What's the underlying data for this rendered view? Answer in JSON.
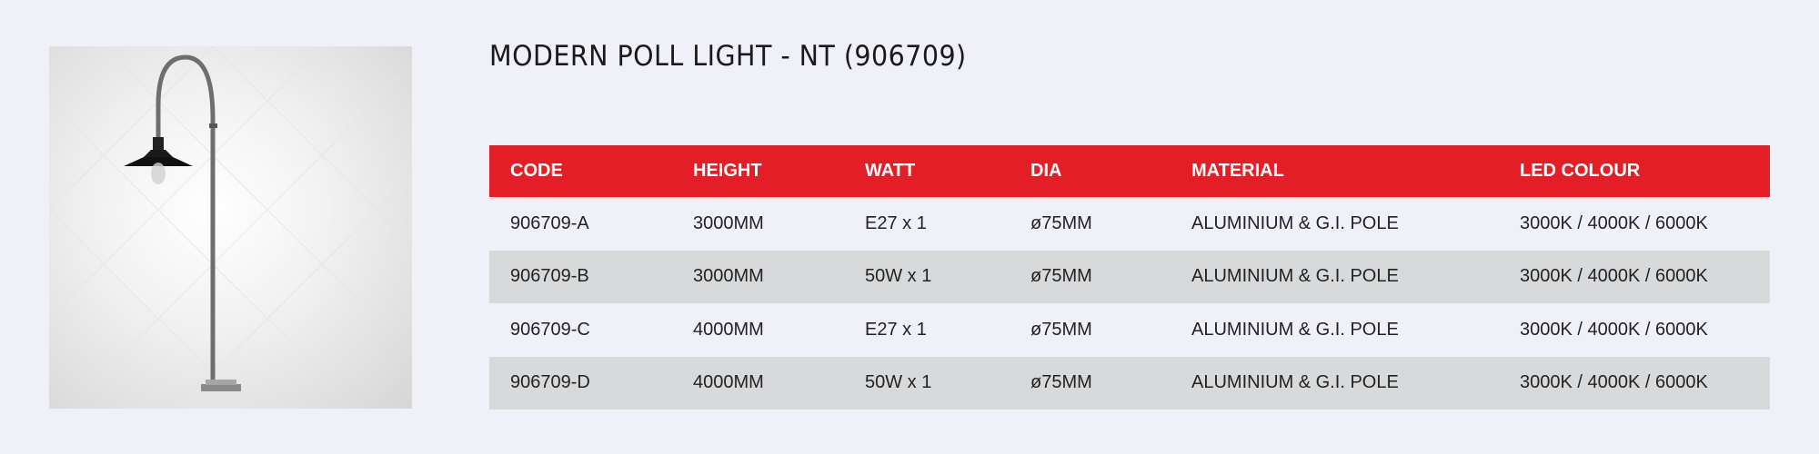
{
  "product": {
    "title": "MODERN POLL LIGHT - NT (906709)",
    "image": "lamp-post-image"
  },
  "colors": {
    "header": "#e31e26",
    "alt_row": "#d8d9db",
    "background": "#f0f1f8"
  },
  "table": {
    "headers": [
      "CODE",
      "HEIGHT",
      "WATT",
      "DIA",
      "MATERIAL",
      "LED COLOUR"
    ],
    "rows": [
      [
        "906709-A",
        "3000MM",
        "E27 x 1",
        "ø75MM",
        "ALUMINIUM & G.I. POLE",
        "3000K / 4000K / 6000K"
      ],
      [
        "906709-B",
        "3000MM",
        "50W x 1",
        "ø75MM",
        "ALUMINIUM & G.I. POLE",
        "3000K / 4000K / 6000K"
      ],
      [
        "906709-C",
        "4000MM",
        "E27 x 1",
        "ø75MM",
        "ALUMINIUM & G.I. POLE",
        "3000K / 4000K / 6000K"
      ],
      [
        "906709-D",
        "4000MM",
        "50W x 1",
        "ø75MM",
        "ALUMINIUM & G.I. POLE",
        "3000K / 4000K / 6000K"
      ]
    ]
  }
}
